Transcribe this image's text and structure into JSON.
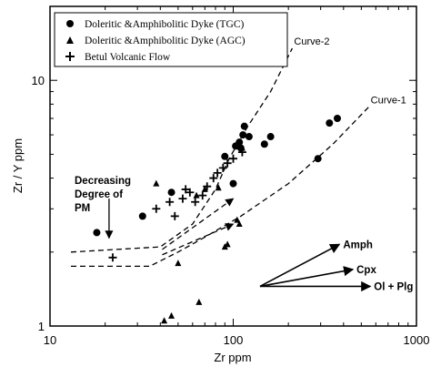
{
  "chart_data": {
    "type": "scatter",
    "xlabel": "Zr ppm",
    "ylabel": "Zr / Y ppm",
    "xscale": "log",
    "yscale": "log",
    "xlim": [
      10,
      1000
    ],
    "ylim": [
      1,
      20
    ],
    "x_ticks": [
      {
        "value": 10,
        "label": "10"
      },
      {
        "value": 100,
        "label": "100"
      },
      {
        "value": 1000,
        "label": "1000"
      }
    ],
    "y_ticks": [
      {
        "value": 1,
        "label": "1"
      },
      {
        "value": 10,
        "label": "10"
      }
    ],
    "legend_position": "top-left",
    "series": [
      {
        "name": "Doleritic &Amphibolitic Dyke (TGC)",
        "marker": "circle",
        "color": "#000000",
        "points": [
          [
            18,
            2.4
          ],
          [
            32,
            2.8
          ],
          [
            46,
            3.5
          ],
          [
            90,
            4.9
          ],
          [
            103,
            5.4
          ],
          [
            108,
            5.6
          ],
          [
            110,
            5.3
          ],
          [
            113,
            6.0
          ],
          [
            115,
            6.5
          ],
          [
            122,
            5.9
          ],
          [
            100,
            3.8
          ],
          [
            148,
            5.5
          ],
          [
            160,
            5.9
          ],
          [
            290,
            4.8
          ],
          [
            335,
            6.7
          ],
          [
            370,
            7.0
          ]
        ]
      },
      {
        "name": "Doleritic &Amphibolitic Dyke (AGC)",
        "marker": "triangle",
        "color": "#000000",
        "points": [
          [
            38,
            3.8
          ],
          [
            50,
            1.8
          ],
          [
            46,
            1.1
          ],
          [
            42,
            1.05
          ],
          [
            65,
            1.25
          ],
          [
            63,
            3.4
          ],
          [
            70,
            3.6
          ],
          [
            83,
            3.65
          ],
          [
            90,
            2.1
          ],
          [
            93,
            2.15
          ],
          [
            105,
            2.7
          ],
          [
            108,
            2.6
          ],
          [
            112,
            5.3
          ]
        ]
      },
      {
        "name": "Betul Volcanic Flow",
        "marker": "plus",
        "color": "#000000",
        "points": [
          [
            22,
            1.9
          ],
          [
            38,
            3.0
          ],
          [
            45,
            3.2
          ],
          [
            48,
            2.8
          ],
          [
            53,
            3.3
          ],
          [
            55,
            3.6
          ],
          [
            58,
            3.5
          ],
          [
            62,
            3.2
          ],
          [
            68,
            3.4
          ],
          [
            72,
            3.7
          ],
          [
            78,
            4.0
          ],
          [
            82,
            4.2
          ],
          [
            88,
            4.4
          ],
          [
            93,
            4.6
          ],
          [
            100,
            4.8
          ],
          [
            112,
            5.1
          ]
        ]
      }
    ],
    "curves": [
      {
        "label": "Curve-2",
        "style": "dashed",
        "points": [
          [
            13,
            2.0
          ],
          [
            40,
            2.1
          ],
          [
            60,
            2.6
          ],
          [
            80,
            3.6
          ],
          [
            95,
            4.8
          ],
          [
            120,
            6.5
          ],
          [
            160,
            9.0
          ],
          [
            210,
            13.5
          ]
        ]
      },
      {
        "label": "Curve-1",
        "style": "dashed",
        "points": [
          [
            13,
            1.75
          ],
          [
            35,
            1.75
          ],
          [
            50,
            2.0
          ],
          [
            70,
            2.3
          ],
          [
            110,
            2.8
          ],
          [
            200,
            3.8
          ],
          [
            350,
            5.5
          ],
          [
            550,
            7.8
          ]
        ]
      }
    ],
    "vectors": [
      {
        "from": [
          41,
          2.05
        ],
        "to": [
          100,
          3.3
        ]
      },
      {
        "from": [
          41,
          1.95
        ],
        "to": [
          100,
          2.6
        ]
      }
    ],
    "annotations": {
      "pm_text": [
        "Decreasing",
        "Degree of",
        "PM"
      ],
      "pm_arrow": {
        "from": [
          21,
          3.3
        ],
        "to": [
          21,
          2.28
        ]
      },
      "mineral_vectors": [
        {
          "label": "Amph",
          "from": [
            140,
            1.45
          ],
          "to": [
            380,
            2.15
          ]
        },
        {
          "label": "Cpx",
          "from": [
            140,
            1.45
          ],
          "to": [
            450,
            1.7
          ]
        },
        {
          "label": "Ol + Plg",
          "from": [
            140,
            1.45
          ],
          "to": [
            560,
            1.45
          ]
        }
      ]
    }
  }
}
